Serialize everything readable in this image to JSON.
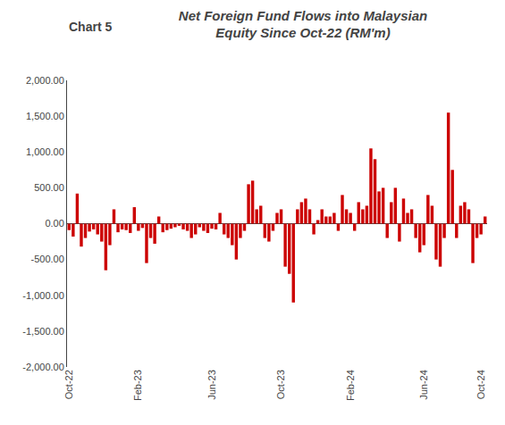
{
  "chart_data": {
    "type": "bar",
    "title": "Net Foreign Fund Flows into Malaysian\nEquity Since Oct-22 (RM'm)",
    "annotations": [
      "Chart 5"
    ],
    "categories": [
      "Oct-22",
      null,
      null,
      null,
      null,
      null,
      null,
      null,
      null,
      null,
      null,
      null,
      null,
      null,
      null,
      null,
      null,
      "Feb-23",
      null,
      null,
      null,
      null,
      null,
      null,
      null,
      null,
      null,
      null,
      null,
      null,
      null,
      null,
      null,
      null,
      null,
      "Jun-23",
      null,
      null,
      null,
      null,
      null,
      null,
      null,
      null,
      null,
      null,
      null,
      null,
      null,
      null,
      null,
      null,
      "Oct-23",
      null,
      null,
      null,
      null,
      null,
      null,
      null,
      null,
      null,
      null,
      null,
      null,
      null,
      null,
      null,
      null,
      "Feb-24",
      null,
      null,
      null,
      null,
      null,
      null,
      null,
      null,
      null,
      null,
      null,
      null,
      null,
      null,
      null,
      null,
      null,
      "Jun-24",
      null,
      null,
      null,
      null,
      null,
      null,
      null,
      null,
      null,
      null,
      null,
      null,
      null,
      "Oct-24",
      null
    ],
    "values": [
      -90,
      -180,
      420,
      -320,
      -200,
      -110,
      -80,
      -150,
      -250,
      -650,
      -300,
      200,
      -120,
      -80,
      -90,
      -130,
      230,
      -100,
      -60,
      -550,
      -200,
      -280,
      100,
      -120,
      -90,
      -70,
      -50,
      -30,
      -80,
      -100,
      -200,
      -150,
      -50,
      -100,
      -130,
      -70,
      -80,
      150,
      -150,
      -200,
      -300,
      -500,
      -200,
      -100,
      550,
      600,
      200,
      250,
      -200,
      -250,
      -100,
      150,
      200,
      -600,
      -700,
      -1100,
      200,
      300,
      350,
      200,
      -150,
      50,
      200,
      100,
      100,
      150,
      -100,
      400,
      200,
      150,
      -100,
      300,
      200,
      250,
      1050,
      900,
      450,
      500,
      -200,
      300,
      500,
      -250,
      350,
      150,
      200,
      -200,
      -400,
      -300,
      400,
      250,
      -500,
      -600,
      -200,
      1550,
      750,
      -200,
      250,
      300,
      200,
      -550,
      -200,
      -150,
      100
    ],
    "color": "#cc0000",
    "ylim": [
      -2000,
      2000
    ],
    "yticks": [
      {
        "value": -2000,
        "label": "-2,000.00"
      },
      {
        "value": -1500,
        "label": "-1,500.00"
      },
      {
        "value": -1000,
        "label": "-1,000.00"
      },
      {
        "value": -500,
        "label": "-500.00"
      },
      {
        "value": 0,
        "label": "0.00"
      },
      {
        "value": 500,
        "label": "500.00"
      },
      {
        "value": 1000,
        "label": "1,000.00"
      },
      {
        "value": 1500,
        "label": "1,500.00"
      },
      {
        "value": 2000,
        "label": "2,000.00"
      }
    ],
    "grid": false
  }
}
